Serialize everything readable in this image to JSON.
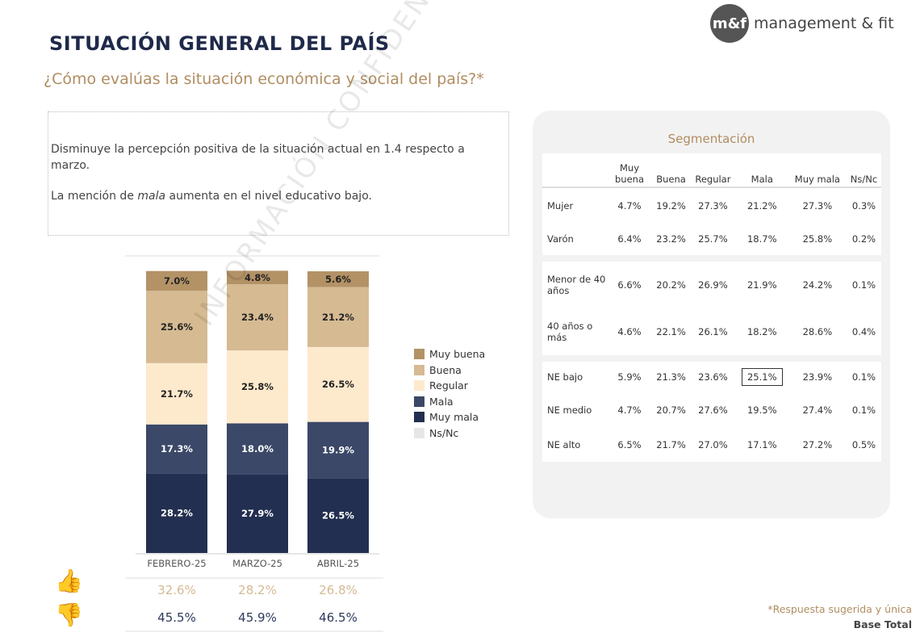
{
  "header": {
    "title": "SITUACIÓN GENERAL DEL PAÍS",
    "subtitle": "¿Cómo evalúas la situación económica y social del país?*",
    "logo_mark": "m&f",
    "logo_text": "management & fit"
  },
  "notes": [
    "Disminuye la percepción positiva de la situación actual en 1.4 respecto a marzo.",
    "La mención de mala aumenta en el nivel educativo bajo."
  ],
  "watermark": "INFORMACIÓN CONFIDENCIAL",
  "chart_data": {
    "type": "bar",
    "stacked": true,
    "categories": [
      "FEBRERO-25",
      "MARZO-25",
      "ABRIL-25"
    ],
    "series": [
      {
        "name": "Muy mala",
        "color": "#232f50",
        "values": [
          28.2,
          27.9,
          26.5
        ]
      },
      {
        "name": "Mala",
        "color": "#3b4868",
        "values": [
          17.3,
          18.0,
          19.9
        ]
      },
      {
        "name": "Regular",
        "color": "#fde9cc",
        "values": [
          21.7,
          25.8,
          26.5
        ]
      },
      {
        "name": "Buena",
        "color": "#d5ba92",
        "values": [
          25.6,
          23.4,
          21.2
        ]
      },
      {
        "name": "Muy buena",
        "color": "#b39266",
        "values": [
          7.0,
          4.8,
          5.6
        ]
      }
    ],
    "legend_order": [
      "Muy buena",
      "Buena",
      "Regular",
      "Mala",
      "Muy mala",
      "Ns/Nc"
    ],
    "legend_colors": {
      "Muy buena": "#b39266",
      "Buena": "#d5ba92",
      "Regular": "#fde9cc",
      "Mala": "#3b4868",
      "Muy mala": "#232f50",
      "Ns/Nc": "#e6e6e6"
    },
    "legend_position": "right",
    "ylim": [
      0,
      100
    ]
  },
  "totals": {
    "positive_icon": "thumbs-up-icon",
    "negative_icon": "thumbs-down-icon",
    "positive": [
      "32.6%",
      "28.2%",
      "26.8%"
    ],
    "negative": [
      "45.5%",
      "45.9%",
      "46.5%"
    ]
  },
  "segmentation": {
    "title": "Segmentación",
    "columns": [
      "Muy buena",
      "Buena",
      "Regular",
      "Mala",
      "Muy mala",
      "Ns/Nc"
    ],
    "rows": [
      {
        "label": "Mujer",
        "values": [
          "4.7%",
          "19.2%",
          "27.3%",
          "21.2%",
          "27.3%",
          "0.3%"
        ]
      },
      {
        "label": "Varón",
        "values": [
          "6.4%",
          "23.2%",
          "25.7%",
          "18.7%",
          "25.8%",
          "0.2%"
        ]
      },
      {
        "label": "Menor de 40 años",
        "values": [
          "6.6%",
          "20.2%",
          "26.9%",
          "21.9%",
          "24.2%",
          "0.1%"
        ]
      },
      {
        "label": "40 años o más",
        "values": [
          "4.6%",
          "22.1%",
          "26.1%",
          "18.2%",
          "28.6%",
          "0.4%"
        ]
      },
      {
        "label": "NE bajo",
        "values": [
          "5.9%",
          "21.3%",
          "23.6%",
          "25.1%",
          "23.9%",
          "0.1%"
        ],
        "highlight": 3
      },
      {
        "label": "NE medio",
        "values": [
          "4.7%",
          "20.7%",
          "27.6%",
          "19.5%",
          "27.4%",
          "0.1%"
        ]
      },
      {
        "label": "NE alto",
        "values": [
          "6.5%",
          "21.7%",
          "27.0%",
          "17.1%",
          "27.2%",
          "0.5%"
        ]
      }
    ]
  },
  "footer": {
    "note": "*Respuesta sugerida y única",
    "base": "Base Total"
  }
}
